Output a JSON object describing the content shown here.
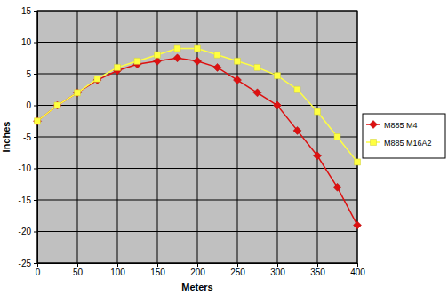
{
  "chart_data": {
    "type": "line",
    "x_label": "Meters",
    "y_label": "Inches",
    "x": [
      0,
      25,
      50,
      75,
      100,
      125,
      150,
      175,
      200,
      225,
      250,
      275,
      300,
      325,
      350,
      375,
      400
    ],
    "series": [
      {
        "name": "M885 M4",
        "color": "#dd1010",
        "marker": "diamond",
        "values": [
          -2.5,
          0,
          2,
          4,
          5.5,
          6.5,
          7,
          7.5,
          7,
          6,
          4,
          2,
          0,
          -4,
          -8,
          -13,
          -19
        ]
      },
      {
        "name": "M885 M16A2",
        "color": "#ffff40",
        "marker": "square",
        "values": [
          -2.5,
          0,
          2,
          4.2,
          6,
          7,
          8,
          9,
          9,
          8,
          7,
          6,
          4.7,
          2.5,
          -1,
          -5,
          -9
        ]
      }
    ],
    "xlim": [
      0,
      400
    ],
    "xticks": [
      0,
      50,
      100,
      150,
      200,
      250,
      300,
      350,
      400
    ],
    "ylim": [
      -25,
      15
    ],
    "yticks": [
      -25,
      -20,
      -15,
      -10,
      -5,
      0,
      5,
      10,
      15
    ],
    "grid": true,
    "legend": "right"
  }
}
